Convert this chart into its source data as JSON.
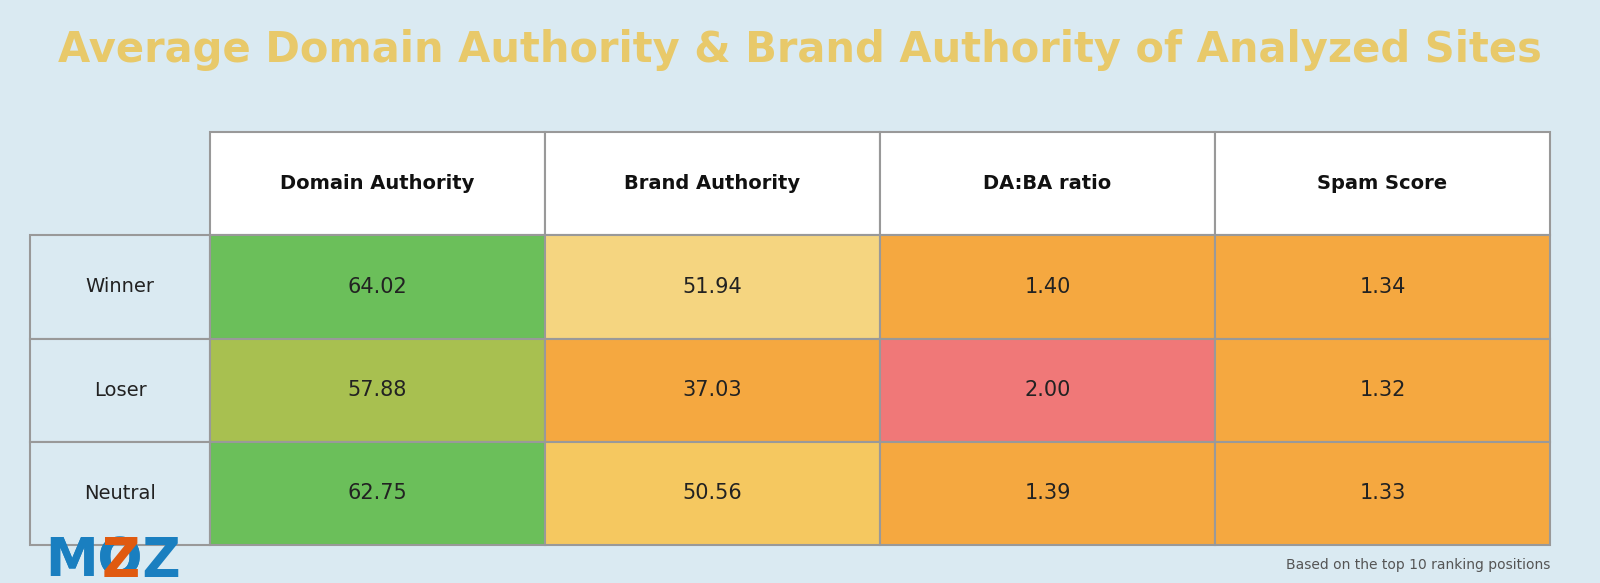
{
  "title": "Average Domain Authority & Brand Authority of Analyzed Sites",
  "title_color": "#e8c96a",
  "title_bg_color": "#0e5068",
  "background_color": "#daeaf2",
  "columns": [
    "Domain Authority",
    "Brand Authority",
    "DA:BA ratio",
    "Spam Score"
  ],
  "rows": [
    "Winner",
    "Loser",
    "Neutral"
  ],
  "values": [
    [
      "64.02",
      "51.94",
      "1.40",
      "1.34"
    ],
    [
      "57.88",
      "37.03",
      "2.00",
      "1.32"
    ],
    [
      "62.75",
      "50.56",
      "1.39",
      "1.33"
    ]
  ],
  "cell_colors": [
    [
      "#6bbf5a",
      "#f5d580",
      "#f5a840",
      "#f5a840"
    ],
    [
      "#a8c050",
      "#f5a840",
      "#f07878",
      "#f5a840"
    ],
    [
      "#6bbf5a",
      "#f5c860",
      "#f5a840",
      "#f5a840"
    ]
  ],
  "footnote": "Based on the top 10 ranking positions",
  "footnote_color": "#555555",
  "row_label_color": "#222222",
  "header_color": "#111111",
  "value_color": "#222222",
  "table_border_color": "#999999",
  "moz_blue": "#1a7fc0",
  "moz_orange": "#e05a10",
  "title_fontsize": 30,
  "header_fontsize": 14,
  "value_fontsize": 15,
  "row_label_fontsize": 14
}
